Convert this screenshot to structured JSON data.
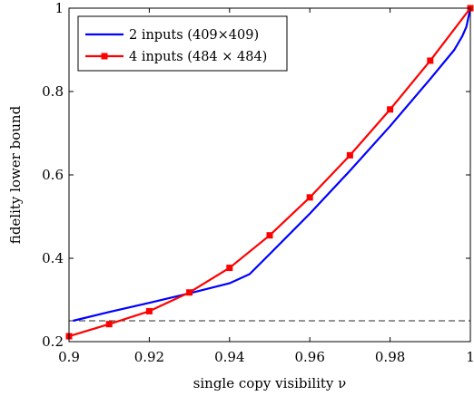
{
  "chart_data": {
    "type": "line",
    "xlabel": "single copy visibility ν",
    "ylabel": "fidelity lower bound",
    "xlim": [
      0.9,
      1.0
    ],
    "ylim": [
      0.2,
      1.0
    ],
    "xticks": [
      0.9,
      0.92,
      0.94,
      0.96,
      0.98,
      1.0
    ],
    "xtick_labels": [
      "0.9",
      "0.92",
      "0.94",
      "0.96",
      "0.98",
      "1"
    ],
    "yticks": [
      0.2,
      0.4,
      0.6,
      0.8,
      1.0
    ],
    "ytick_labels": [
      "0.2",
      "0.4",
      "0.6",
      "0.8",
      "1"
    ],
    "grid": false,
    "legend_position": "top-left",
    "reference_line": {
      "y": 0.25,
      "style": "dashed",
      "color": "#555555"
    },
    "series": [
      {
        "name": "2 inputs (409×409)",
        "color": "#0000ff",
        "marker": "none",
        "x": [
          0.901,
          0.91,
          0.92,
          0.93,
          0.94,
          0.945,
          0.95,
          0.96,
          0.97,
          0.98,
          0.99,
          0.996,
          0.998,
          0.999,
          1.0
        ],
        "y": [
          0.25,
          0.271,
          0.293,
          0.316,
          0.34,
          0.362,
          0.41,
          0.507,
          0.61,
          0.717,
          0.83,
          0.9,
          0.933,
          0.955,
          1.0
        ]
      },
      {
        "name": "4 inputs (484 × 484)",
        "color": "#ff0000",
        "marker": "square",
        "x": [
          0.9,
          0.91,
          0.92,
          0.93,
          0.94,
          0.95,
          0.96,
          0.97,
          0.98,
          0.99,
          1.0
        ],
        "y": [
          0.213,
          0.242,
          0.273,
          0.318,
          0.377,
          0.455,
          0.546,
          0.647,
          0.757,
          0.874,
          1.0
        ]
      }
    ]
  }
}
